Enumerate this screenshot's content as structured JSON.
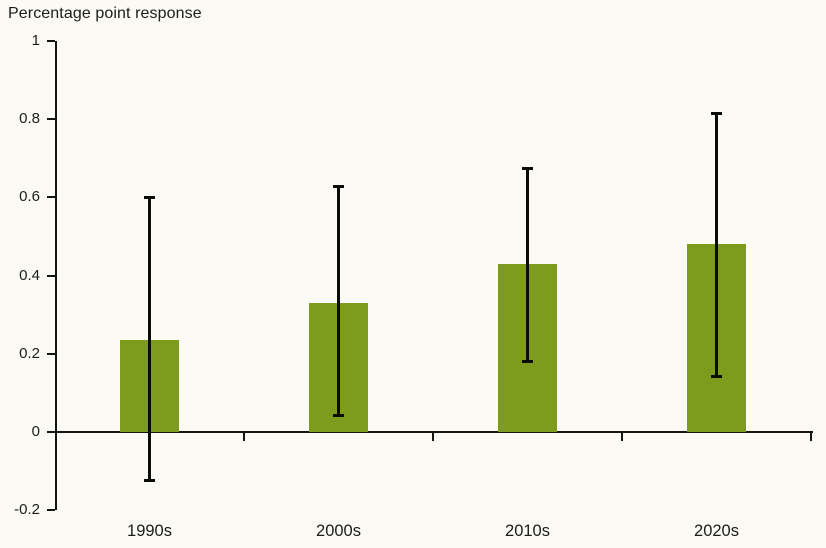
{
  "chart_data": {
    "type": "bar",
    "title": "Percentage point response",
    "categories": [
      "1990s",
      "2000s",
      "2010s",
      "2020s"
    ],
    "values": [
      0.235,
      0.33,
      0.43,
      0.48
    ],
    "error_low": [
      -0.125,
      0.04,
      0.18,
      0.14
    ],
    "error_high": [
      0.6,
      0.63,
      0.675,
      0.815
    ],
    "ylim": [
      -0.2,
      1
    ],
    "yticks": [
      1,
      0.8,
      0.6,
      0.4,
      0.2,
      0,
      -0.2
    ],
    "ytick_labels": [
      "1",
      "0.8",
      "0.6",
      "0.4",
      "0.2",
      "0",
      "-0.2"
    ],
    "xlabel": "",
    "ylabel": "",
    "grid": false,
    "legend_position": "none",
    "colors": {
      "bar": "#7d9c1e",
      "error_bar": "#0b0b07",
      "axis": "#141414",
      "text": "#1c1c1c",
      "background": "#fbfaf4"
    }
  }
}
